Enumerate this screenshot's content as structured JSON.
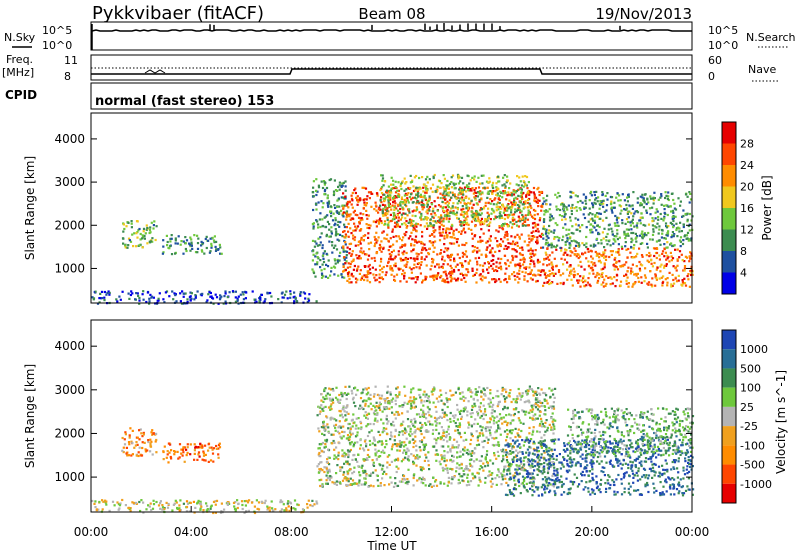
{
  "header": {
    "station": "Pykkvibaer (fitACF)",
    "beam": "Beam 08",
    "date": "19/Nov/2013"
  },
  "strip_panels": {
    "nsky_label": "N.Sky",
    "nsky_ticks": [
      "10^5",
      "10^0"
    ],
    "nsearch_label": "N.Search",
    "nsearch_ticks": [
      "10^5",
      "10^0"
    ],
    "freq_label": "Freq.",
    "freq_unit": "[MHz]",
    "freq_ticks": [
      "11",
      "8"
    ],
    "nave_label": "Nave",
    "nave_ticks": [
      "60",
      "0"
    ],
    "cpid_label": "CPID",
    "cpid_value": "normal (fast stereo) 153"
  },
  "colors": {
    "power_scale": [
      "#0000e6",
      "#1e50a0",
      "#3c8c50",
      "#6ec83c",
      "#f0c81e",
      "#ff8c00",
      "#ff4600",
      "#e60000"
    ],
    "velocity_scale": [
      "#1e46b4",
      "#286e96",
      "#3c8c50",
      "#6ec83c",
      "#b4b4b4",
      "#f0a01e",
      "#ff8c00",
      "#ff4600",
      "#e60000"
    ],
    "ground_scatter": "#b4b4b4"
  },
  "chart_data": [
    {
      "type": "heatmap",
      "name": "power",
      "ylabel": "Slant Range [km]",
      "yticks": [
        "1000",
        "2000",
        "3000",
        "4000"
      ],
      "ylim": [
        200,
        4600
      ],
      "xlim": [
        0,
        24
      ],
      "colorbar_label": "Power [dB]",
      "colorbar_ticks": [
        "4",
        "8",
        "12",
        "16",
        "20",
        "24",
        "28"
      ],
      "clim": [
        0,
        32
      ],
      "regions": [
        {
          "t0": 1.2,
          "t1": 2.6,
          "r0": 1500,
          "r1": 2150,
          "level": 0.4
        },
        {
          "t0": 2.8,
          "t1": 5.2,
          "r0": 1350,
          "r1": 1800,
          "level": 0.3
        },
        {
          "t0": 0.0,
          "t1": 9.0,
          "r0": 200,
          "r1": 500,
          "level": 0.15
        },
        {
          "t0": 8.8,
          "t1": 10.2,
          "r0": 800,
          "r1": 3100,
          "level": 0.3
        },
        {
          "t0": 10.0,
          "t1": 18.0,
          "r0": 700,
          "r1": 2900,
          "level": 0.8
        },
        {
          "t0": 11.5,
          "t1": 17.5,
          "r0": 2000,
          "r1": 3200,
          "level": 0.45
        },
        {
          "t0": 18.0,
          "t1": 24.0,
          "r0": 600,
          "r1": 1500,
          "level": 0.75
        },
        {
          "t0": 18.0,
          "t1": 24.0,
          "r0": 1500,
          "r1": 2800,
          "level": 0.35
        }
      ]
    },
    {
      "type": "heatmap",
      "name": "velocity",
      "ylabel": "Slant Range [km]",
      "yticks": [
        "1000",
        "2000",
        "3000",
        "4000"
      ],
      "ylim": [
        200,
        4600
      ],
      "xlim": [
        0,
        24
      ],
      "xlabel": "Time UT",
      "xticks": [
        "00:00",
        "04:00",
        "08:00",
        "12:00",
        "16:00",
        "20:00",
        "00:00"
      ],
      "colorbar_label": "Velocity [m s^-1]",
      "colorbar_ticks": [
        "1000",
        "500",
        "100",
        "25",
        "-25",
        "-100",
        "-500",
        "-1000"
      ],
      "regions": [
        {
          "t0": 1.2,
          "t1": 2.6,
          "r0": 1500,
          "r1": 2150,
          "level": 0.7
        },
        {
          "t0": 2.8,
          "t1": 5.2,
          "r0": 1350,
          "r1": 1800,
          "level": 0.75
        },
        {
          "t0": 0.0,
          "t1": 9.0,
          "r0": 200,
          "r1": 500,
          "level": 0.5
        },
        {
          "t0": 9.0,
          "t1": 18.5,
          "r0": 800,
          "r1": 3100,
          "level": 0.45
        },
        {
          "t0": 16.5,
          "t1": 24.0,
          "r0": 600,
          "r1": 1900,
          "level": 0.15
        },
        {
          "t0": 19.0,
          "t1": 24.0,
          "r0": 1500,
          "r1": 2600,
          "level": 0.35
        }
      ]
    }
  ]
}
